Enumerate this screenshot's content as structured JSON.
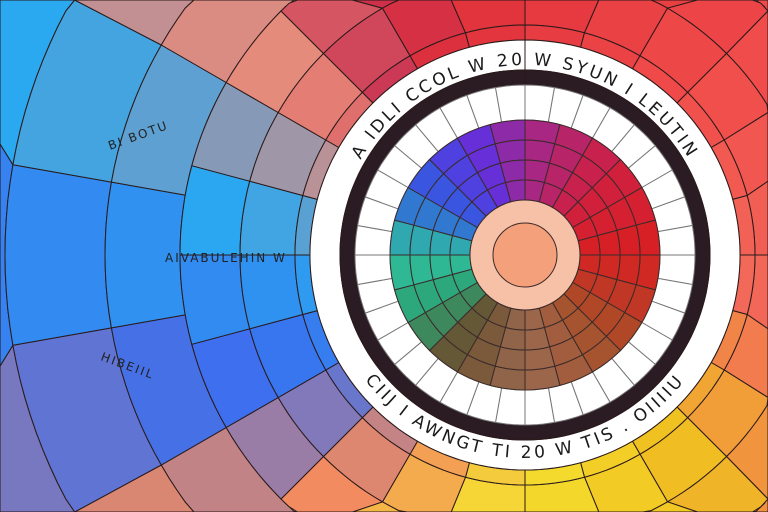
{
  "illustration": {
    "subject": "color-wheel",
    "ring_text_top": "A IDLI  CCOL   W   20   W   SYUN  I  LEUTIN",
    "ring_text_bottom": "CIIJ  I  AWNGT   TI   20   W   TIS .  OIIIIU",
    "side_text_upper": "BI BOTU",
    "side_text_middle": "AIVABULEHIN W",
    "side_text_lower": "HIBEIIL",
    "colors": {
      "center": "#f4a07a",
      "center_ring": "#f6c1a6",
      "dark_ring": "#2b1b22",
      "grid_ring": "#ffffff",
      "outline": "#3a2a2a"
    }
  }
}
